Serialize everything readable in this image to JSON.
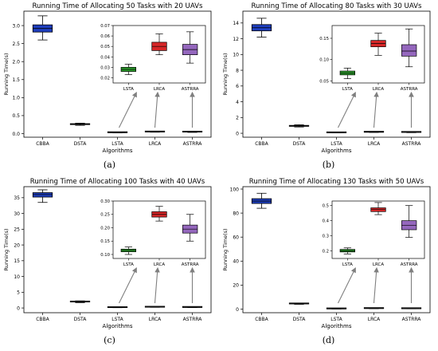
{
  "chart_data": [
    {
      "type": "box",
      "panel_label": "(a)",
      "title": "Running Time of Allocating 50 Tasks with 20 UAVs",
      "xlabel": "Algorithms",
      "ylabel": "Running Time(s)",
      "categories": [
        "CBBA",
        "DSTA",
        "LSTA",
        "LRCA",
        "ASTRRA"
      ],
      "colors": [
        "#1f3fbf",
        "#3a3a3a",
        "#3a3a3a",
        "#3a3a3a",
        "#3a3a3a"
      ],
      "boxes": [
        {
          "min": 2.6,
          "q1": 2.82,
          "median": 2.92,
          "q3": 3.02,
          "max": 3.27
        },
        {
          "min": 0.23,
          "q1": 0.25,
          "median": 0.26,
          "q3": 0.27,
          "max": 0.29
        },
        {
          "min": 0.02,
          "q1": 0.025,
          "median": 0.028,
          "q3": 0.03,
          "max": 0.035
        },
        {
          "min": 0.04,
          "q1": 0.045,
          "median": 0.05,
          "q3": 0.055,
          "max": 0.062
        },
        {
          "min": 0.034,
          "q1": 0.042,
          "median": 0.047,
          "q3": 0.052,
          "max": 0.064
        }
      ],
      "ylim": [
        -0.1,
        3.4
      ],
      "yticks": [
        "0.0",
        "0.5",
        "1.0",
        "1.5",
        "2.0",
        "2.5",
        "3.0"
      ],
      "ytick_values": [
        0,
        0.5,
        1.0,
        1.5,
        2.0,
        2.5,
        3.0
      ],
      "inset": {
        "categories": [
          "LSTA",
          "LRCA",
          "ASTRRA"
        ],
        "colors": [
          "#2ca02c",
          "#d62728",
          "#9467bd"
        ],
        "boxes": [
          {
            "min": 0.023,
            "q1": 0.026,
            "median": 0.028,
            "q3": 0.03,
            "max": 0.033
          },
          {
            "min": 0.042,
            "q1": 0.046,
            "median": 0.05,
            "q3": 0.054,
            "max": 0.062
          },
          {
            "min": 0.034,
            "q1": 0.042,
            "median": 0.047,
            "q3": 0.052,
            "max": 0.064
          }
        ],
        "ylim": [
          0.015,
          0.07
        ],
        "yticks": [
          "0.02",
          "0.03",
          "0.04",
          "0.05",
          "0.06",
          "0.07"
        ],
        "ytick_values": [
          0.02,
          0.03,
          0.04,
          0.05,
          0.06,
          0.07
        ]
      }
    },
    {
      "type": "box",
      "panel_label": "(b)",
      "title": "Running Time of Allocating 80 Tasks with 30 UAVs",
      "xlabel": "Algorithms",
      "ylabel": "Running Time(s)",
      "categories": [
        "CBBA",
        "DSTA",
        "LSTA",
        "LRCA",
        "ASTRRA"
      ],
      "colors": [
        "#1f3fbf",
        "#3a3a3a",
        "#3a3a3a",
        "#3a3a3a",
        "#3a3a3a"
      ],
      "boxes": [
        {
          "min": 12.2,
          "q1": 13.0,
          "median": 13.4,
          "q3": 13.8,
          "max": 14.6
        },
        {
          "min": 0.8,
          "q1": 0.88,
          "median": 0.95,
          "q3": 1.0,
          "max": 1.08
        },
        {
          "min": 0.05,
          "q1": 0.06,
          "median": 0.07,
          "q3": 0.075,
          "max": 0.08
        },
        {
          "min": 0.11,
          "q1": 0.13,
          "median": 0.14,
          "q3": 0.145,
          "max": 0.16
        },
        {
          "min": 0.08,
          "q1": 0.11,
          "median": 0.12,
          "q3": 0.135,
          "max": 0.17
        }
      ],
      "ylim": [
        -0.5,
        15.5
      ],
      "yticks": [
        "0",
        "2",
        "4",
        "6",
        "8",
        "10",
        "12",
        "14"
      ],
      "ytick_values": [
        0,
        2,
        4,
        6,
        8,
        10,
        12,
        14
      ],
      "inset": {
        "categories": [
          "LSTA",
          "LRCA",
          "ASTRRA"
        ],
        "colors": [
          "#2ca02c",
          "#d62728",
          "#9467bd"
        ],
        "boxes": [
          {
            "min": 0.055,
            "q1": 0.064,
            "median": 0.068,
            "q3": 0.073,
            "max": 0.08
          },
          {
            "min": 0.11,
            "q1": 0.13,
            "median": 0.138,
            "q3": 0.145,
            "max": 0.162
          },
          {
            "min": 0.083,
            "q1": 0.108,
            "median": 0.12,
            "q3": 0.135,
            "max": 0.172
          }
        ],
        "ylim": [
          0.045,
          0.18
        ],
        "yticks": [
          "0.05",
          "0.10",
          "0.15"
        ],
        "ytick_values": [
          0.05,
          0.1,
          0.15
        ]
      }
    },
    {
      "type": "box",
      "panel_label": "(c)",
      "title": "Running Time of Allocating 100 Tasks with 40 UAVs",
      "xlabel": "Algorithms",
      "ylabel": "Running Time(s)",
      "categories": [
        "CBBA",
        "DSTA",
        "LSTA",
        "LRCA",
        "ASTRRA"
      ],
      "colors": [
        "#1f3fbf",
        "#3a3a3a",
        "#3a3a3a",
        "#3a3a3a",
        "#3a3a3a"
      ],
      "boxes": [
        {
          "min": 33.5,
          "q1": 35.2,
          "median": 36.0,
          "q3": 36.6,
          "max": 37.5
        },
        {
          "min": 1.7,
          "q1": 1.9,
          "median": 2.0,
          "q3": 2.1,
          "max": 2.25
        },
        {
          "min": 0.1,
          "q1": 0.11,
          "median": 0.115,
          "q3": 0.12,
          "max": 0.13
        },
        {
          "min": 0.22,
          "q1": 0.24,
          "median": 0.25,
          "q3": 0.26,
          "max": 0.28
        },
        {
          "min": 0.15,
          "q1": 0.18,
          "median": 0.195,
          "q3": 0.21,
          "max": 0.25
        }
      ],
      "ylim": [
        -1.5,
        38.5
      ],
      "yticks": [
        "0",
        "5",
        "10",
        "15",
        "20",
        "25",
        "30",
        "35"
      ],
      "ytick_values": [
        0,
        5,
        10,
        15,
        20,
        25,
        30,
        35
      ],
      "inset": {
        "categories": [
          "LSTA",
          "LRCA",
          "ASTRRA"
        ],
        "colors": [
          "#2ca02c",
          "#d62728",
          "#9467bd"
        ],
        "boxes": [
          {
            "min": 0.1,
            "q1": 0.11,
            "median": 0.115,
            "q3": 0.12,
            "max": 0.128
          },
          {
            "min": 0.225,
            "q1": 0.24,
            "median": 0.25,
            "q3": 0.26,
            "max": 0.28
          },
          {
            "min": 0.15,
            "q1": 0.18,
            "median": 0.195,
            "q3": 0.21,
            "max": 0.25
          }
        ],
        "ylim": [
          0.085,
          0.3
        ],
        "yticks": [
          "0.10",
          "0.15",
          "0.20",
          "0.25",
          "0.30"
        ],
        "ytick_values": [
          0.1,
          0.15,
          0.2,
          0.25,
          0.3
        ]
      }
    },
    {
      "type": "box",
      "panel_label": "(d)",
      "title": "Running Time of Allocating 130 Tasks with 50 UAVs",
      "xlabel": "Algorithms",
      "ylabel": "Running Time(s)",
      "categories": [
        "CBBA",
        "DSTA",
        "LSTA",
        "LRCA",
        "ASTRRA"
      ],
      "colors": [
        "#1f3fbf",
        "#3a3a3a",
        "#3a3a3a",
        "#3a3a3a",
        "#3a3a3a"
      ],
      "boxes": [
        {
          "min": 84.0,
          "q1": 88.0,
          "median": 90.0,
          "q3": 92.0,
          "max": 96.5
        },
        {
          "min": 4.0,
          "q1": 4.3,
          "median": 4.5,
          "q3": 4.7,
          "max": 5.0
        },
        {
          "min": 0.18,
          "q1": 0.195,
          "median": 0.2,
          "q3": 0.21,
          "max": 0.22
        },
        {
          "min": 0.44,
          "q1": 0.46,
          "median": 0.475,
          "q3": 0.485,
          "max": 0.52
        },
        {
          "min": 0.29,
          "q1": 0.34,
          "median": 0.37,
          "q3": 0.4,
          "max": 0.5
        }
      ],
      "ylim": [
        -3,
        102
      ],
      "yticks": [
        "0",
        "20",
        "40",
        "60",
        "80",
        "100"
      ],
      "ytick_values": [
        0,
        20,
        40,
        60,
        80,
        100
      ],
      "inset": {
        "categories": [
          "LSTA",
          "LRCA",
          "ASTRRA"
        ],
        "colors": [
          "#2ca02c",
          "#d62728",
          "#9467bd"
        ],
        "boxes": [
          {
            "min": 0.18,
            "q1": 0.193,
            "median": 0.2,
            "q3": 0.21,
            "max": 0.22
          },
          {
            "min": 0.44,
            "q1": 0.46,
            "median": 0.475,
            "q3": 0.485,
            "max": 0.52
          },
          {
            "min": 0.29,
            "q1": 0.34,
            "median": 0.37,
            "q3": 0.4,
            "max": 0.5
          }
        ],
        "ylim": [
          0.15,
          0.53
        ],
        "yticks": [
          "0.2",
          "0.3",
          "0.4",
          "0.5"
        ],
        "ytick_values": [
          0.2,
          0.3,
          0.4,
          0.5
        ]
      }
    }
  ]
}
